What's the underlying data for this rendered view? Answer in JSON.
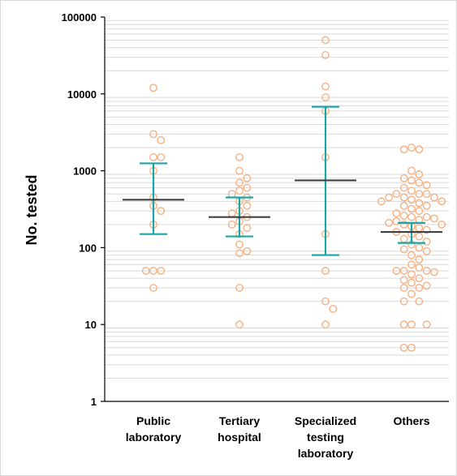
{
  "chart_data": {
    "type": "scatter",
    "title": "",
    "xlabel": "",
    "ylabel": "No. tested",
    "yscale": "log",
    "ylim": [
      1,
      100000
    ],
    "yticks": [
      "1",
      "10",
      "100",
      "1000",
      "10000",
      "100000"
    ],
    "grid": "minor-horizontal",
    "colors": {
      "points": "#f4b183",
      "error_bar": "#1aa6a6",
      "median": "#404040",
      "grid": "#d9d9d9",
      "axis": "#000000"
    },
    "categories": [
      {
        "lines": [
          "Public",
          "laboratory"
        ]
      },
      {
        "lines": [
          "Tertiary",
          "hospital"
        ]
      },
      {
        "lines": [
          "Specialized",
          "testing",
          "laboratory"
        ]
      },
      {
        "lines": [
          "Others"
        ]
      }
    ],
    "groups": [
      {
        "median": 420,
        "whisker_low": 150,
        "whisker_high": 1250,
        "points": [
          12000,
          3000,
          2500,
          1500,
          1500,
          1000,
          450,
          350,
          300,
          200,
          50,
          50,
          50,
          30
        ]
      },
      {
        "median": 250,
        "whisker_low": 140,
        "whisker_high": 450,
        "points": [
          1500,
          1000,
          800,
          700,
          600,
          550,
          500,
          450,
          400,
          350,
          300,
          280,
          250,
          220,
          200,
          180,
          150,
          110,
          90,
          85,
          30,
          10
        ]
      },
      {
        "median": 750,
        "whisker_low": 80,
        "whisker_high": 6800,
        "points": [
          50000,
          32000,
          12500,
          9000,
          6000,
          1500,
          150,
          50,
          20,
          16,
          10
        ]
      },
      {
        "median": 160,
        "whisker_low": 115,
        "whisker_high": 210,
        "points": [
          2000,
          1900,
          1900,
          1000,
          900,
          800,
          750,
          700,
          650,
          600,
          550,
          500,
          500,
          500,
          450,
          450,
          450,
          420,
          400,
          400,
          380,
          350,
          350,
          320,
          300,
          280,
          260,
          250,
          250,
          240,
          230,
          220,
          210,
          200,
          200,
          190,
          180,
          170,
          160,
          150,
          140,
          130,
          120,
          110,
          100,
          95,
          90,
          80,
          70,
          60,
          55,
          50,
          50,
          50,
          48,
          45,
          40,
          38,
          35,
          32,
          30,
          30,
          25,
          20,
          20,
          10,
          10,
          10,
          5,
          5
        ]
      }
    ]
  }
}
